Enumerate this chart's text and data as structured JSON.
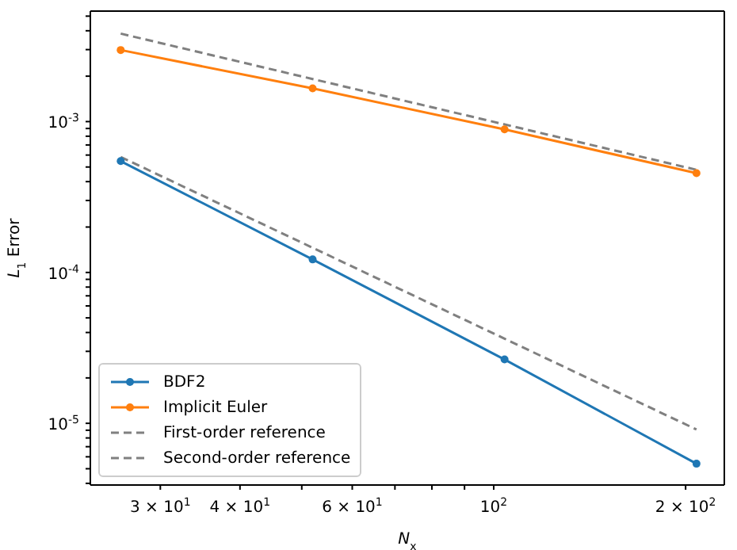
{
  "chart_data": {
    "type": "line",
    "xlabel": "N$_{x}$",
    "ylabel": "L$_{1}$ Error",
    "log": "xy",
    "grid": false,
    "legend": "bottom left",
    "xlim": [
      23.3,
      230
    ],
    "ylim": [
      3.9e-06,
      0.0054
    ],
    "xticks": [
      {
        "value": 30,
        "label": "3 × 10$^{1}$"
      },
      {
        "value": 40,
        "label": "4 × 10$^{1}$"
      },
      {
        "value": 50,
        "label": null
      },
      {
        "value": 60,
        "label": "6 × 10$^{1}$"
      },
      {
        "value": 70,
        "label": null
      },
      {
        "value": 80,
        "label": null
      },
      {
        "value": 90,
        "label": null
      },
      {
        "value": 100,
        "label": "10$^{2}$"
      },
      {
        "value": 200,
        "label": "2 × 10$^{2}$"
      }
    ],
    "yticks": [
      {
        "value": 4e-06,
        "label": null
      },
      {
        "value": 5e-06,
        "label": null
      },
      {
        "value": 6e-06,
        "label": null
      },
      {
        "value": 7e-06,
        "label": null
      },
      {
        "value": 8e-06,
        "label": null
      },
      {
        "value": 9e-06,
        "label": null
      },
      {
        "value": 1e-05,
        "label": "10$^{-5}$"
      },
      {
        "value": 2e-05,
        "label": null
      },
      {
        "value": 3e-05,
        "label": null
      },
      {
        "value": 4e-05,
        "label": null
      },
      {
        "value": 5e-05,
        "label": null
      },
      {
        "value": 6e-05,
        "label": null
      },
      {
        "value": 7e-05,
        "label": null
      },
      {
        "value": 8e-05,
        "label": null
      },
      {
        "value": 9e-05,
        "label": null
      },
      {
        "value": 0.0001,
        "label": "10$^{-4}$"
      },
      {
        "value": 0.0002,
        "label": null
      },
      {
        "value": 0.0003,
        "label": null
      },
      {
        "value": 0.0004,
        "label": null
      },
      {
        "value": 0.0005,
        "label": null
      },
      {
        "value": 0.0006,
        "label": null
      },
      {
        "value": 0.0007,
        "label": null
      },
      {
        "value": 0.0008,
        "label": null
      },
      {
        "value": 0.0009,
        "label": null
      },
      {
        "value": 0.001,
        "label": "10$^{-3}$"
      },
      {
        "value": 0.002,
        "label": null
      },
      {
        "value": 0.003,
        "label": null
      },
      {
        "value": 0.004,
        "label": null
      },
      {
        "value": 0.005,
        "label": null
      }
    ],
    "x": [
      26,
      52,
      104,
      208
    ],
    "series": [
      {
        "name": "BDF2",
        "color": "#1f77b4",
        "values": [
          0.000547,
          0.000122,
          2.65e-05,
          5.4e-06
        ],
        "marker": "circle",
        "line_style": "solid"
      },
      {
        "name": "Implicit Euler",
        "color": "#ff7f0e",
        "values": [
          0.00298,
          0.00166,
          0.000887,
          0.000455
        ],
        "marker": "circle",
        "line_style": "solid"
      },
      {
        "name": "First-order reference",
        "color": "#808080",
        "values": [
          0.00383,
          0.001915,
          0.000958,
          0.000479
        ],
        "marker": "none",
        "line_style": "dashed"
      },
      {
        "name": "Second-order reference",
        "color": "#808080",
        "values": [
          0.000583,
          0.0001458,
          3.64e-05,
          9.1e-06
        ],
        "marker": "none",
        "line_style": "dashed"
      }
    ]
  }
}
